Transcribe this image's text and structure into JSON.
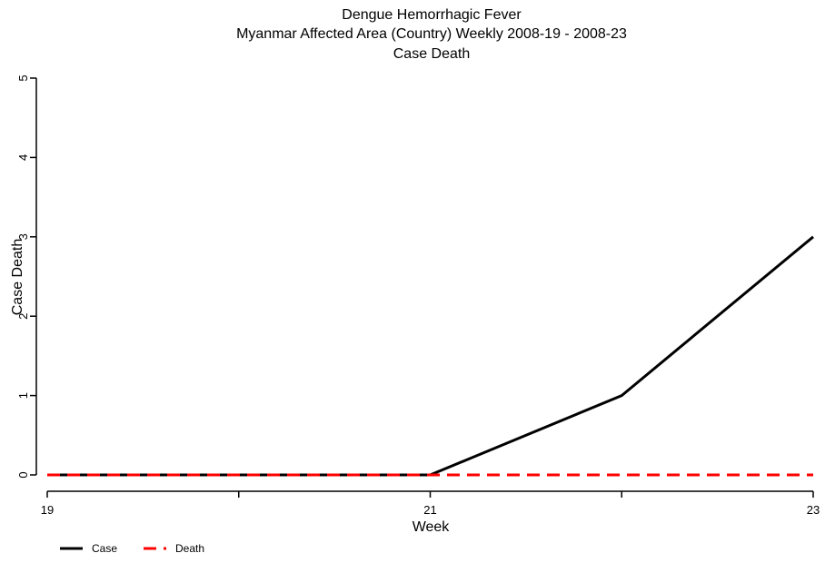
{
  "chart_data": {
    "type": "line",
    "title": "Dengue Hemorrhagic Fever",
    "subtitle": "Myanmar Affected Area (Country) Weekly 2008-19 - 2008-23",
    "subtitle2": "Case Death",
    "xlabel": "Week",
    "ylabel": "Case Death",
    "x": [
      19,
      20,
      21,
      22,
      23
    ],
    "xlim": [
      19,
      23
    ],
    "ylim": [
      0,
      5
    ],
    "x_ticks": [
      19,
      20,
      21,
      22,
      23
    ],
    "x_tick_labels": [
      "19",
      "",
      "21",
      "",
      "23"
    ],
    "y_ticks": [
      0,
      1,
      2,
      3,
      4,
      5
    ],
    "y_tick_labels": [
      "0",
      "1",
      "2",
      "3",
      "4",
      "5"
    ],
    "grid": false,
    "legend_position": "bottom-left",
    "series": [
      {
        "name": "Case",
        "values": [
          0,
          0,
          0,
          1,
          3
        ],
        "color": "#000000",
        "style": "solid"
      },
      {
        "name": "Death",
        "values": [
          0,
          0,
          0,
          0,
          0
        ],
        "color": "#ff0000",
        "style": "dashed"
      }
    ]
  }
}
